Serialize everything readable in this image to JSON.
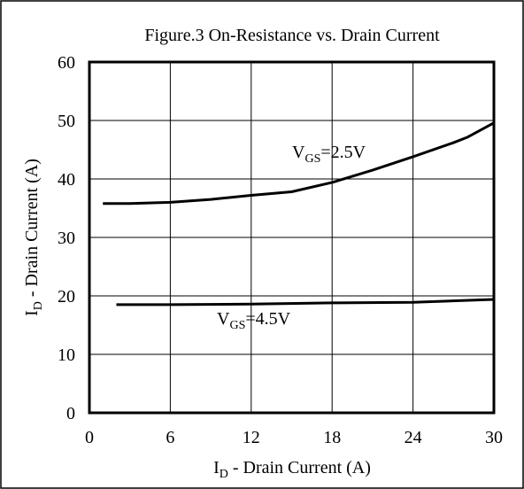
{
  "chart_data": {
    "type": "line",
    "title": "Figure.3 On-Resistance vs. Drain Current",
    "xlabel": [
      "I",
      "D",
      " - Drain Current (A)"
    ],
    "ylabel": [
      "I",
      "D",
      " - Drain Current (A)"
    ],
    "xlim": [
      0,
      30
    ],
    "ylim": [
      0,
      60
    ],
    "xticks": [
      0,
      6,
      12,
      18,
      24,
      30
    ],
    "yticks": [
      0,
      10,
      20,
      30,
      40,
      50,
      60
    ],
    "grid": true,
    "series": [
      {
        "label": [
          "V",
          "GS",
          "=2.5V"
        ],
        "color": "#000000",
        "x": [
          1,
          3,
          6,
          9,
          12,
          15,
          18,
          21,
          24,
          27,
          28,
          30
        ],
        "values": [
          35.8,
          35.8,
          36,
          36.5,
          37.2,
          37.8,
          39.4,
          41.5,
          43.8,
          46.2,
          47.1,
          49.6
        ]
      },
      {
        "label": [
          "V",
          "GS",
          "=4.5V"
        ],
        "color": "#000000",
        "x": [
          2,
          6,
          12,
          18,
          24,
          30
        ],
        "values": [
          18.5,
          18.5,
          18.6,
          18.8,
          18.9,
          19.4
        ]
      }
    ]
  }
}
